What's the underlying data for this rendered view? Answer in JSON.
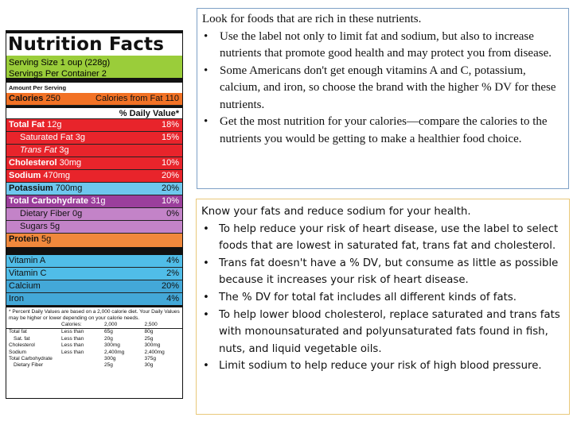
{
  "label": {
    "title": "Nutrition Facts",
    "serving_size": "Serving Size 1 oup (228g)",
    "servings_per_container": "Servings Per Container 2",
    "amount_per_serving": "Amount Per Serving",
    "calories_label": "Calories",
    "calories_value": "250",
    "calories_from_fat": "Calories from Fat 110",
    "daily_value_header": "% Daily Value*",
    "rows": [
      {
        "name": "Total Fat",
        "amount": "12g",
        "dv": "18%"
      },
      {
        "name": "Saturated Fat",
        "amount": "3g",
        "dv": "15%"
      },
      {
        "name": "Trans Fat",
        "amount": "3g",
        "dv": ""
      },
      {
        "name": "Cholesterol",
        "amount": "30mg",
        "dv": "10%"
      },
      {
        "name": "Sodium",
        "amount": "470mg",
        "dv": "20%"
      },
      {
        "name": "Potassium",
        "amount": "700mg",
        "dv": "20%"
      },
      {
        "name": "Total Carbohydrate",
        "amount": "31g",
        "dv": "10%"
      },
      {
        "name": "Dietary Fiber",
        "amount": "0g",
        "dv": "0%"
      },
      {
        "name": "Sugars",
        "amount": "5g",
        "dv": ""
      },
      {
        "name": "Protein",
        "amount": "5g",
        "dv": ""
      }
    ],
    "vitamins": [
      {
        "name": "Vitamin A",
        "dv": "4%"
      },
      {
        "name": "Vitamin C",
        "dv": "2%"
      },
      {
        "name": "Calcium",
        "dv": "20%"
      },
      {
        "name": "Iron",
        "dv": "4%"
      }
    ],
    "footnote": "* Percent Daily Values are based on a 2,000 calorie diet. Your Daily Values may be higher or lower depending on your calorie needs.",
    "footnote_table": {
      "header": [
        "",
        "Calories:",
        "2,000",
        "2,500"
      ],
      "rows": [
        [
          "Total fat",
          "Less than",
          "65g",
          "80g"
        ],
        [
          "Sat. fat",
          "Less than",
          "20g",
          "25g"
        ],
        [
          "Cholesterol",
          "Less than",
          "300mg",
          "300mg"
        ],
        [
          "Sodium",
          "Less than",
          "2,400mg",
          "2,400mg"
        ],
        [
          "Total Carbohydrate",
          "",
          "300g",
          "375g"
        ],
        [
          "Dietary Fiber",
          "",
          "25g",
          "30g"
        ]
      ]
    }
  },
  "box1": {
    "heading": "Look for foods that are rich in these nutrients.",
    "bullet": "•",
    "items": [
      "Use the label not only to limit fat and sodium, but also to increase nutrients that promote good health and may protect you from disease.",
      "Some Americans don't get enough vitamins A and C, potassium, calcium, and iron, so choose the brand with the higher % DV for these nutrients.",
      "Get the most nutrition for your calories—compare the calories to the nutrients you would be getting to make a healthier food choice."
    ]
  },
  "box2": {
    "heading": "Know your fats and reduce sodium for your health.",
    "bullet": "•",
    "items": [
      "To help reduce your risk of heart disease, use the label to select foods that are lowest in saturated fat, trans fat and cholesterol.",
      "Trans fat doesn't have a % DV, but consume as little as possible because it increases your risk of heart disease.",
      "The % DV for total fat includes all different kinds of fats.",
      "To help lower blood cholesterol, replace saturated and trans fats with monounsaturated and polyunsaturated fats found in fish, nuts, and liquid vegetable oils.",
      "Limit sodium to help reduce your risk of high blood pressure."
    ]
  },
  "colors": {
    "serving_highlight": "#9acd3a",
    "calories_highlight": "#f27225",
    "limit_nutrients": "#e8242b",
    "potassium": "#6ec7ee",
    "carbohydrate": "#9b3f9c",
    "fiber_sugars": "#c383c8",
    "protein": "#f0883c",
    "vitamins": "#50bde8",
    "box1_border": "#7ea1c6",
    "box2_border": "#e9c87a"
  }
}
